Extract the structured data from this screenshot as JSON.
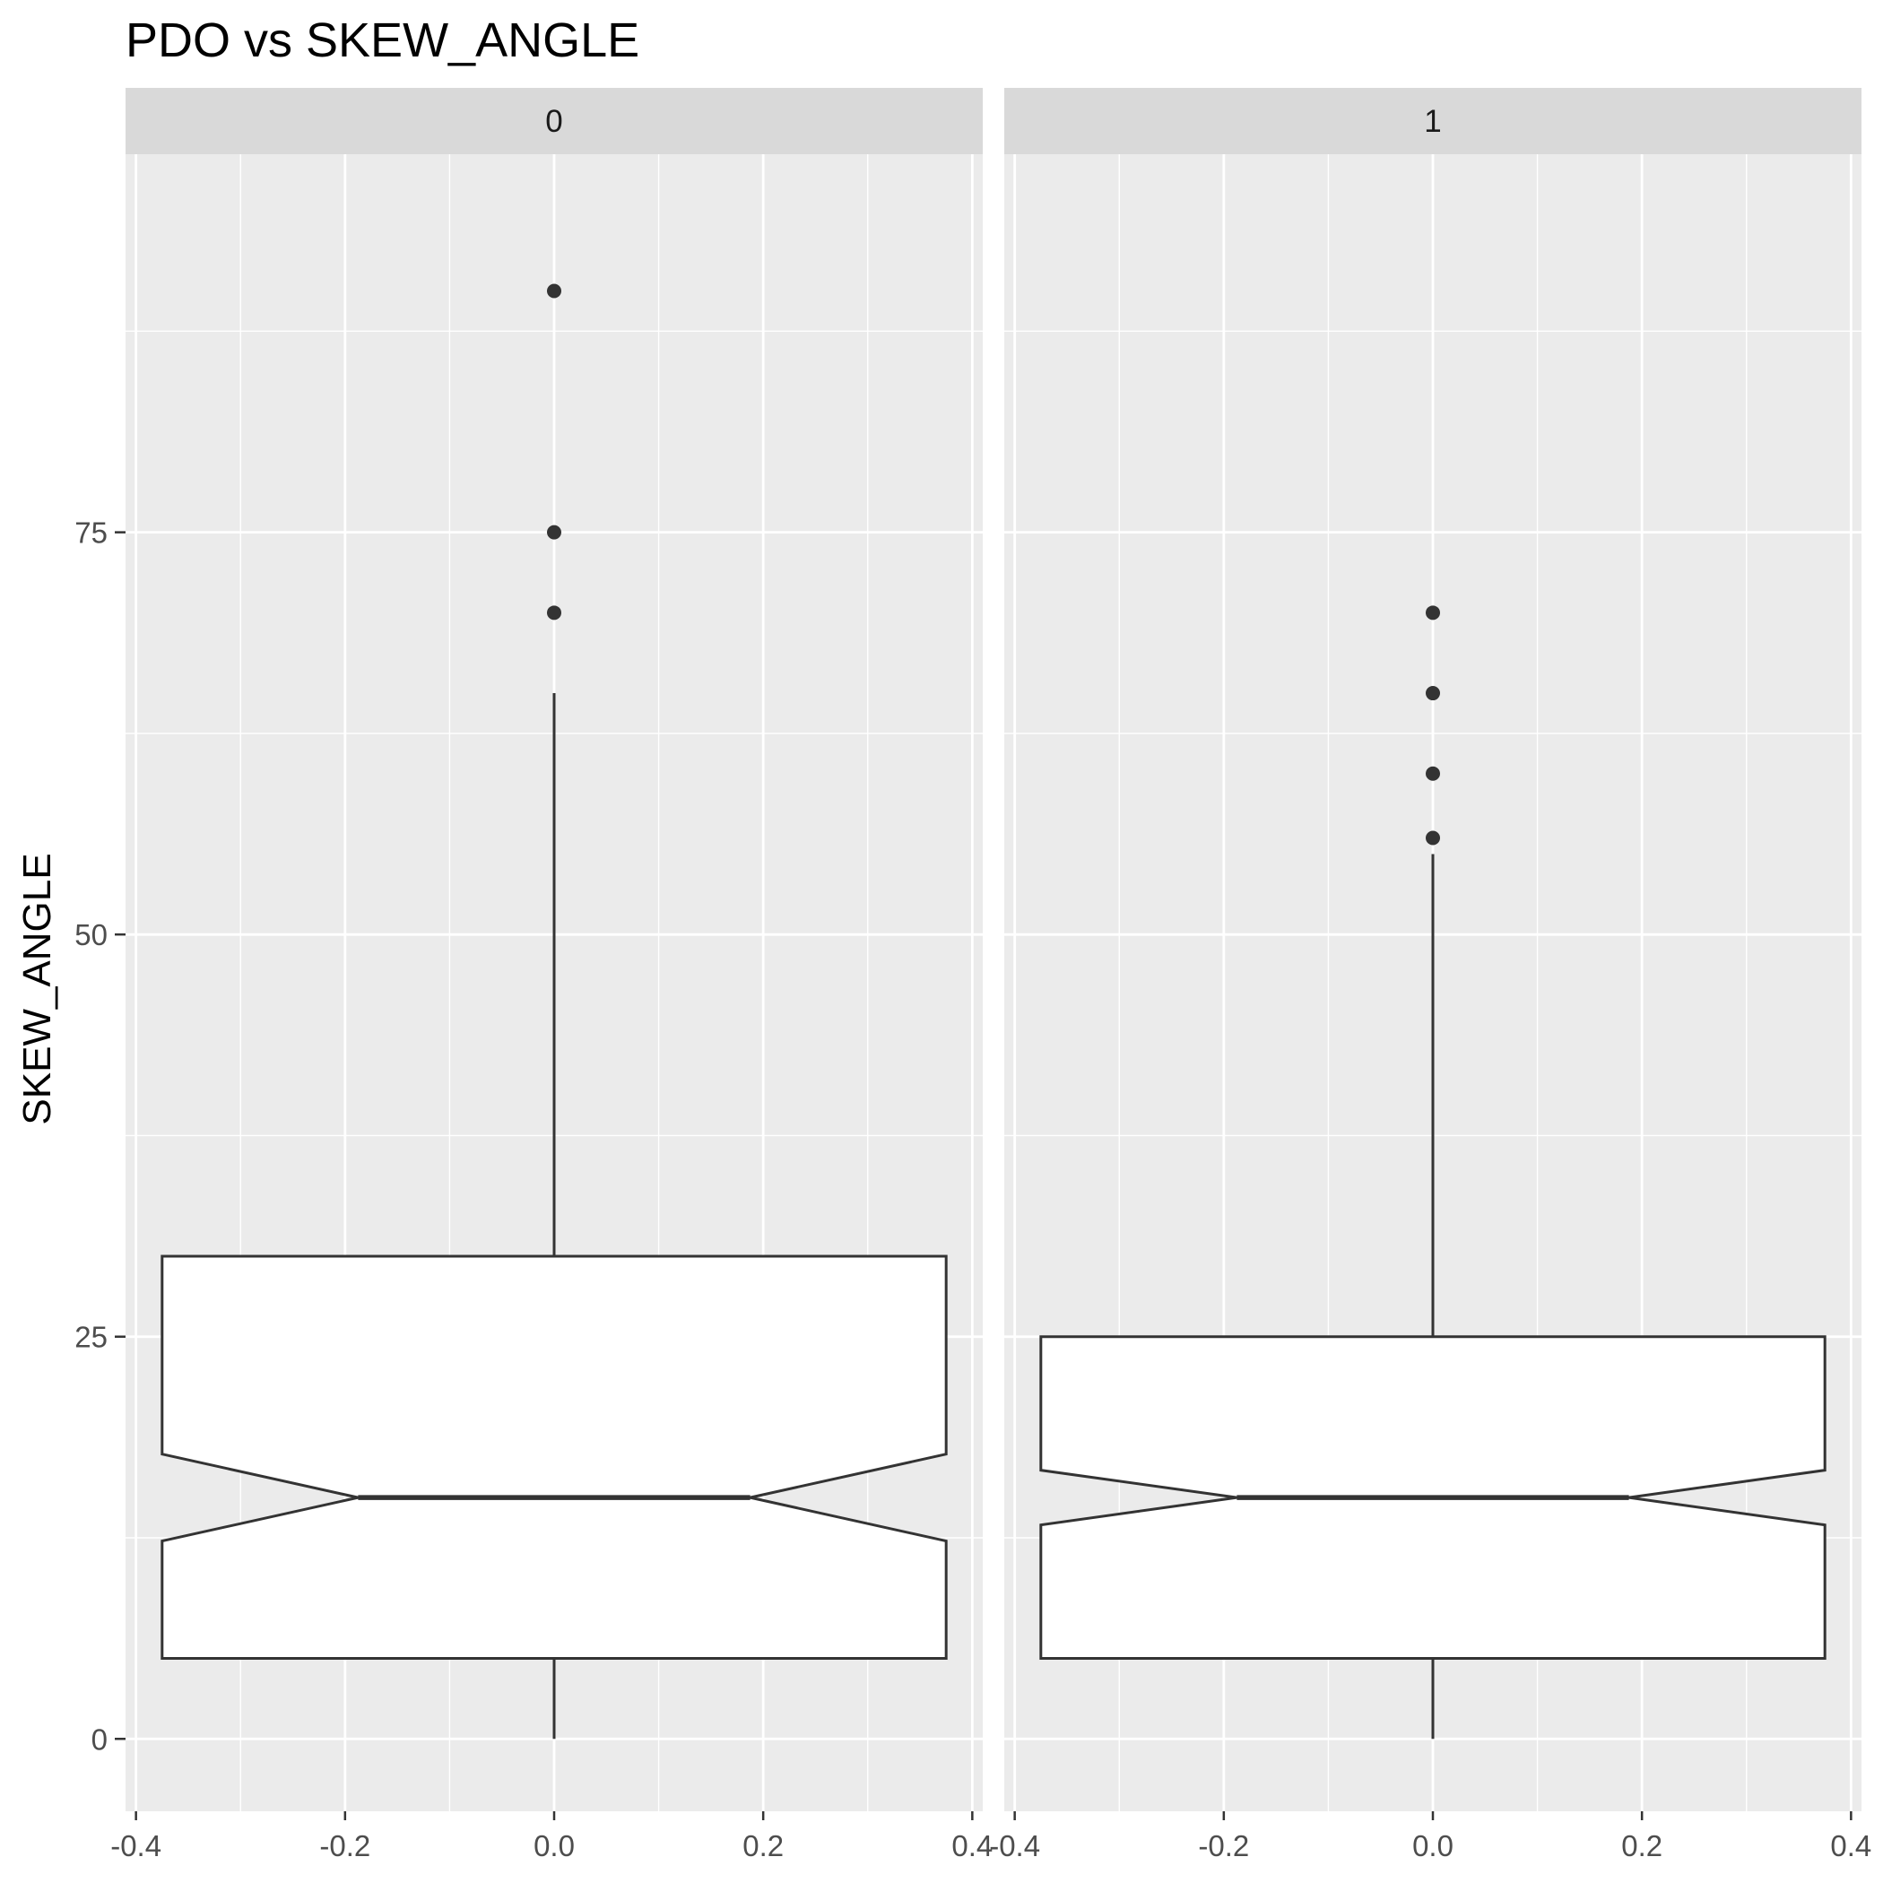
{
  "chart_data": {
    "type": "boxplot",
    "title": "PDO vs SKEW_ANGLE",
    "xlabel": "",
    "ylabel": "SKEW_ANGLE",
    "facet_variable": "PDO",
    "xlim": [
      -0.41,
      0.41
    ],
    "ylim": [
      -4.5,
      98.5
    ],
    "x_ticks": [
      -0.4,
      -0.2,
      0.0,
      0.2,
      0.4
    ],
    "x_tick_labels": [
      "-0.4",
      "-0.2",
      "0.0",
      "0.2",
      "0.4"
    ],
    "y_ticks": [
      0,
      25,
      50,
      75
    ],
    "y_tick_labels": [
      "0",
      "25",
      "50",
      "75"
    ],
    "grid": true,
    "notched": true,
    "colors": {
      "panel_bg": "#ebebeb",
      "strip_bg": "#d9d9d9",
      "gridline": "#ffffff",
      "box_fill": "#ffffff",
      "box_line": "#333333",
      "outlier": "#333333"
    },
    "panels": [
      {
        "facet": "0",
        "box": {
          "x": 0,
          "whisker_low": 0,
          "q1": 5,
          "notch_low": 12.3,
          "median": 15,
          "notch_high": 17.7,
          "q3": 30,
          "whisker_high": 65,
          "outliers": [
            70,
            75,
            90
          ]
        }
      },
      {
        "facet": "1",
        "box": {
          "x": 0,
          "whisker_low": 0,
          "q1": 5,
          "notch_low": 13.3,
          "median": 15,
          "notch_high": 16.7,
          "q3": 25,
          "whisker_high": 55,
          "outliers": [
            56,
            60,
            65,
            70
          ]
        }
      }
    ]
  }
}
